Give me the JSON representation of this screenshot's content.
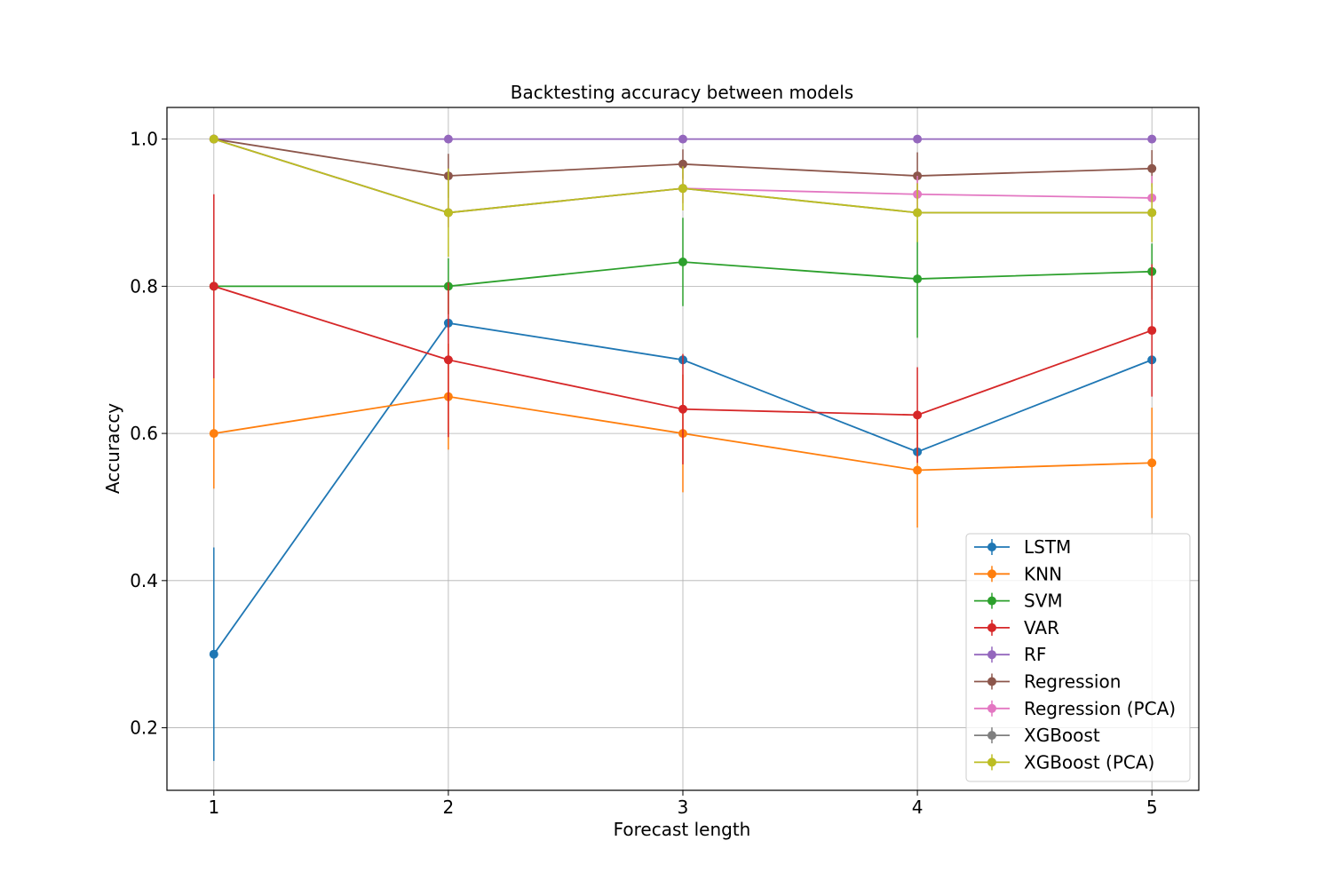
{
  "chart_data": {
    "type": "line",
    "title": "Backtesting accuracy between models",
    "xlabel": "Forecast length",
    "ylabel": "Accuraccy",
    "x": [
      1,
      2,
      3,
      4,
      5
    ],
    "xlim": [
      0.8,
      5.2
    ],
    "ylim": [
      0.115,
      1.043
    ],
    "xticks": [
      1,
      2,
      3,
      4,
      5
    ],
    "xtick_labels": [
      "1",
      "2",
      "3",
      "4",
      "5"
    ],
    "yticks": [
      0.2,
      0.4,
      0.6,
      0.8,
      1.0
    ],
    "ytick_labels": [
      "0.2",
      "0.4",
      "0.6",
      "0.8",
      "1.0"
    ],
    "grid": true,
    "legend_position": "bottom-right",
    "series": [
      {
        "name": "LSTM",
        "color": "#1f77b4",
        "values": [
          0.3,
          0.75,
          0.7,
          0.575,
          0.7
        ],
        "errors": [
          0.145,
          0.0,
          0.0,
          0.0,
          0.0
        ]
      },
      {
        "name": "KNN",
        "color": "#ff7f0e",
        "values": [
          0.6,
          0.65,
          0.6,
          0.55,
          0.56
        ],
        "errors": [
          0.075,
          0.072,
          0.08,
          0.078,
          0.075
        ]
      },
      {
        "name": "SVM",
        "color": "#2ca02c",
        "values": [
          0.8,
          0.8,
          0.833,
          0.81,
          0.82
        ],
        "errors": [
          0.0,
          0.038,
          0.06,
          0.08,
          0.038
        ]
      },
      {
        "name": "VAR",
        "color": "#d62728",
        "values": [
          0.8,
          0.7,
          0.633,
          0.625,
          0.74
        ],
        "errors": [
          0.125,
          0.105,
          0.075,
          0.065,
          0.09
        ]
      },
      {
        "name": "RF",
        "color": "#9467bd",
        "values": [
          1.0,
          1.0,
          1.0,
          1.0,
          1.0
        ],
        "errors": [
          0.0,
          0.0,
          0.0,
          0.0,
          0.0
        ]
      },
      {
        "name": "Regression",
        "color": "#8c564b",
        "values": [
          1.0,
          0.95,
          0.966,
          0.95,
          0.96
        ],
        "errors": [
          0.0,
          0.03,
          0.02,
          0.032,
          0.025
        ]
      },
      {
        "name": "Regression (PCA)",
        "color": "#e377c2",
        "values": [
          1.0,
          0.9,
          0.933,
          0.925,
          0.92
        ],
        "errors": [
          0.0,
          0.02,
          0.02,
          0.025,
          0.03
        ]
      },
      {
        "name": "XGBoost",
        "color": "#7f7f7f",
        "values": [
          1.0,
          0.9,
          0.933,
          0.9,
          0.9
        ],
        "errors": [
          0.0,
          0.0,
          0.0,
          0.0,
          0.0
        ]
      },
      {
        "name": "XGBoost (PCA)",
        "color": "#bcbd22",
        "values": [
          1.0,
          0.9,
          0.933,
          0.9,
          0.9
        ],
        "errors": [
          0.0,
          0.06,
          0.03,
          0.04,
          0.04
        ]
      }
    ]
  }
}
